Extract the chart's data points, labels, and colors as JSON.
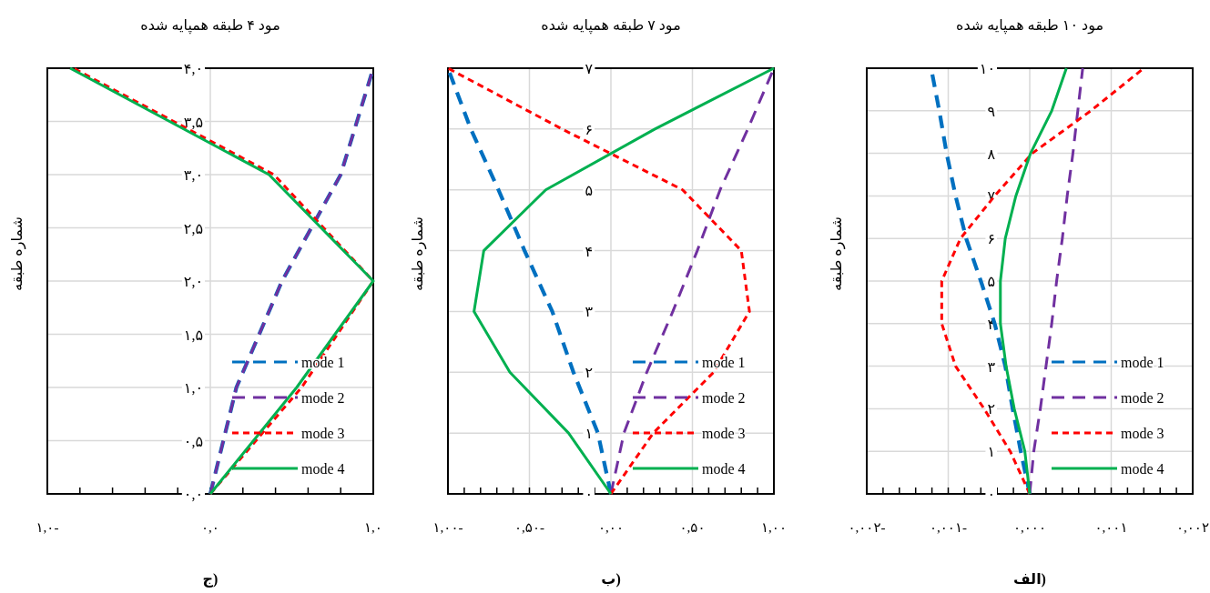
{
  "chart_data": [
    {
      "type": "line",
      "title": "مود ۱۰ طبقه همپایه شده",
      "ylabel": "شماره طبقه",
      "annotations": [
        "الف)"
      ],
      "grid": true,
      "legend": "bottom right",
      "xlim": [
        -0.002,
        0.002
      ],
      "xticks": [
        {
          "value": -0.002,
          "label": "۰,۰۰۲-"
        },
        {
          "value": -0.0018,
          "label": null
        },
        {
          "value": -0.0016,
          "label": null
        },
        {
          "value": -0.0014,
          "label": null
        },
        {
          "value": -0.0012,
          "label": null
        },
        {
          "value": -0.001,
          "label": "۰,۰۰۱-"
        },
        {
          "value": -0.0008,
          "label": null
        },
        {
          "value": -0.0006,
          "label": null
        },
        {
          "value": -0.0004,
          "label": null
        },
        {
          "value": -0.0002,
          "label": null
        },
        {
          "value": 0,
          "label": "۰,۰۰۰"
        },
        {
          "value": 0.0002,
          "label": null
        },
        {
          "value": 0.0004,
          "label": null
        },
        {
          "value": 0.0006,
          "label": null
        },
        {
          "value": 0.0008,
          "label": null
        },
        {
          "value": 0.001,
          "label": "۰,۰۰۱"
        },
        {
          "value": 0.0012,
          "label": null
        },
        {
          "value": 0.0014,
          "label": null
        },
        {
          "value": 0.0016,
          "label": null
        },
        {
          "value": 0.0018,
          "label": null
        },
        {
          "value": 0.002,
          "label": "۰,۰۰۲"
        }
      ],
      "ylim": [
        0,
        10
      ],
      "yticks": [
        {
          "value": 0,
          "label": "۰"
        },
        {
          "value": 1,
          "label": "۱"
        },
        {
          "value": 2,
          "label": "۲"
        },
        {
          "value": 3,
          "label": "۳"
        },
        {
          "value": 4,
          "label": "۴"
        },
        {
          "value": 5,
          "label": "۵"
        },
        {
          "value": 6,
          "label": "۶"
        },
        {
          "value": 7,
          "label": "۷"
        },
        {
          "value": 8,
          "label": "۸"
        },
        {
          "value": 9,
          "label": "۹"
        },
        {
          "value": 10,
          "label": "۱۰"
        }
      ],
      "series": [
        {
          "name": "mode 1",
          "color": "#0070c0",
          "line_style": "dashed",
          "x": [
            0,
            -0.00011,
            -0.00021,
            -0.0003,
            -0.00043,
            -0.0006,
            -0.00078,
            -0.00091,
            -0.00102,
            -0.00111,
            -0.00121
          ],
          "values": [
            0,
            1,
            2,
            3,
            4,
            5,
            6,
            7,
            8,
            9,
            10
          ]
        },
        {
          "name": "mode 2",
          "color": "#7030a0",
          "line_style": "dashed",
          "x": [
            0,
            5e-05,
            0.00013,
            0.0002,
            0.00027,
            0.00033,
            0.0004,
            0.00046,
            0.00053,
            0.00059,
            0.00065
          ],
          "values": [
            0,
            1,
            2,
            3,
            4,
            5,
            6,
            7,
            8,
            9,
            10
          ]
        },
        {
          "name": "mode 3",
          "color": "#ff0000",
          "line_style": "dotted",
          "x": [
            0,
            -0.00024,
            -0.00056,
            -0.00091,
            -0.00108,
            -0.00108,
            -0.00085,
            -0.00043,
            3e-05,
            0.00075,
            0.0014
          ],
          "values": [
            0,
            1,
            2,
            3,
            4,
            5,
            6,
            7,
            8,
            9,
            10
          ]
        },
        {
          "name": "mode 4",
          "color": "#00b050",
          "line_style": "solid",
          "x": [
            0,
            -6e-05,
            -0.00019,
            -0.00029,
            -0.00036,
            -0.00036,
            -0.0003,
            -0.00017,
            1e-05,
            0.00027,
            0.00045
          ],
          "values": [
            0,
            1,
            2,
            3,
            4,
            5,
            6,
            7,
            8,
            9,
            10
          ]
        }
      ]
    },
    {
      "type": "line",
      "title": "مود ۷ طبقه همپایه شده",
      "ylabel": "شماره طبقه",
      "annotations": [
        "ب)"
      ],
      "grid": true,
      "legend": "bottom right",
      "xlim": [
        -1,
        1
      ],
      "xticks": [
        {
          "value": -1,
          "label": "۱,۰۰-"
        },
        {
          "value": -0.9,
          "label": null
        },
        {
          "value": -0.8,
          "label": null
        },
        {
          "value": -0.7,
          "label": null
        },
        {
          "value": -0.6,
          "label": null
        },
        {
          "value": -0.5,
          "label": "۰,۵۰-"
        },
        {
          "value": -0.4,
          "label": null
        },
        {
          "value": -0.3,
          "label": null
        },
        {
          "value": -0.2,
          "label": null
        },
        {
          "value": -0.1,
          "label": null
        },
        {
          "value": 0,
          "label": "۰,۰۰"
        },
        {
          "value": 0.1,
          "label": null
        },
        {
          "value": 0.2,
          "label": null
        },
        {
          "value": 0.3,
          "label": null
        },
        {
          "value": 0.4,
          "label": null
        },
        {
          "value": 0.5,
          "label": "۰,۵۰"
        },
        {
          "value": 0.6,
          "label": null
        },
        {
          "value": 0.7,
          "label": null
        },
        {
          "value": 0.8,
          "label": null
        },
        {
          "value": 0.9,
          "label": null
        },
        {
          "value": 1,
          "label": "۱,۰۰"
        }
      ],
      "ylim": [
        0,
        7
      ],
      "yticks": [
        {
          "value": 0,
          "label": "۰"
        },
        {
          "value": 1,
          "label": "۱"
        },
        {
          "value": 2,
          "label": "۲"
        },
        {
          "value": 3,
          "label": "۳"
        },
        {
          "value": 4,
          "label": "۴"
        },
        {
          "value": 5,
          "label": "۵"
        },
        {
          "value": 6,
          "label": "۶"
        },
        {
          "value": 7,
          "label": "۷"
        }
      ],
      "series": [
        {
          "name": "mode 1",
          "color": "#0070c0",
          "line_style": "dashed",
          "x": [
            0,
            -0.08,
            -0.23,
            -0.36,
            -0.53,
            -0.69,
            -0.86,
            -1
          ],
          "values": [
            0,
            1,
            2,
            3,
            4,
            5,
            6,
            7
          ]
        },
        {
          "name": "mode 2",
          "color": "#7030a0",
          "line_style": "dashed",
          "x": [
            0,
            0.08,
            0.22,
            0.38,
            0.53,
            0.67,
            0.84,
            1
          ],
          "values": [
            0,
            1,
            2,
            3,
            4,
            5,
            6,
            7
          ]
        },
        {
          "name": "mode 3",
          "color": "#ff0000",
          "line_style": "dotted",
          "x": [
            0,
            0.26,
            0.63,
            0.85,
            0.8,
            0.44,
            -0.3,
            -1
          ],
          "values": [
            0,
            1,
            2,
            3,
            4,
            5,
            6,
            7
          ]
        },
        {
          "name": "mode 4",
          "color": "#00b050",
          "line_style": "solid",
          "x": [
            0,
            -0.26,
            -0.62,
            -0.84,
            -0.78,
            -0.4,
            0.27,
            1
          ],
          "values": [
            0,
            1,
            2,
            3,
            4,
            5,
            6,
            7
          ]
        }
      ]
    },
    {
      "type": "line",
      "title": "مود ۴ طبقه همپایه شده",
      "ylabel": "شماره طبقه",
      "annotations": [
        "ج)"
      ],
      "grid": true,
      "legend": "bottom right",
      "xlim": [
        -1,
        1
      ],
      "xticks": [
        {
          "value": -1,
          "label": "۱,۰-"
        },
        {
          "value": -0.8,
          "label": null
        },
        {
          "value": -0.6,
          "label": null
        },
        {
          "value": -0.4,
          "label": null
        },
        {
          "value": -0.2,
          "label": null
        },
        {
          "value": 0,
          "label": "۰,۰"
        },
        {
          "value": 0.2,
          "label": null
        },
        {
          "value": 0.4,
          "label": null
        },
        {
          "value": 0.6,
          "label": null
        },
        {
          "value": 0.8,
          "label": null
        },
        {
          "value": 1,
          "label": "۱,۰"
        }
      ],
      "ylim": [
        0,
        4
      ],
      "yticks": [
        {
          "value": 0,
          "label": "۰,۰"
        },
        {
          "value": 0.5,
          "label": "۰,۵"
        },
        {
          "value": 1,
          "label": "۱,۰"
        },
        {
          "value": 1.5,
          "label": "۱,۵"
        },
        {
          "value": 2,
          "label": "۲,۰"
        },
        {
          "value": 2.5,
          "label": "۲,۵"
        },
        {
          "value": 3,
          "label": "۳,۰"
        },
        {
          "value": 3.5,
          "label": "۳,۵"
        },
        {
          "value": 4,
          "label": "۴,۰"
        }
      ],
      "series": [
        {
          "name": "mode 1",
          "color": "#0070c0",
          "line_style": "dashed",
          "x": [
            0,
            0.16,
            0.44,
            0.8,
            1
          ],
          "values": [
            0,
            1,
            2,
            3,
            4
          ]
        },
        {
          "name": "mode 2",
          "color": "#7030a0",
          "line_style": "dashed",
          "x": [
            0,
            0.16,
            0.44,
            0.8,
            1
          ],
          "values": [
            0,
            1,
            2,
            3,
            4
          ]
        },
        {
          "name": "mode 3",
          "color": "#ff0000",
          "line_style": "dotted",
          "x": [
            0,
            0.56,
            1,
            0.39,
            -0.84
          ],
          "values": [
            0,
            1,
            2,
            3,
            4
          ]
        },
        {
          "name": "mode 4",
          "color": "#00b050",
          "line_style": "solid",
          "x": [
            0,
            0.53,
            1,
            0.36,
            -0.86
          ],
          "values": [
            0,
            1,
            2,
            3,
            4
          ]
        }
      ]
    }
  ]
}
